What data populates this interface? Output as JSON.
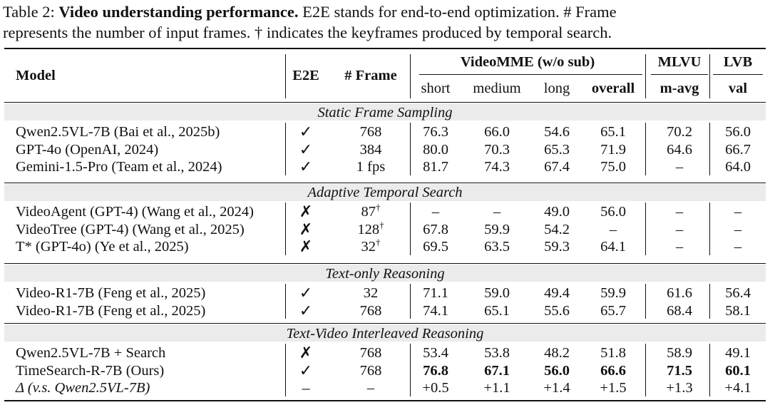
{
  "caption": {
    "prefix": "Table 2: ",
    "bold": "Video understanding performance.",
    "line1_rest": " E2E stands for end-to-end optimization. # Frame",
    "line2": "represents the number of input frames. † indicates the keyframes produced by temporal search."
  },
  "header": {
    "model": "Model",
    "e2e": "E2E",
    "frame": "# Frame",
    "videomme": "VideoMME (w/o sub)",
    "mlvu": "MLVU",
    "lvb": "LVB",
    "short": "short",
    "medium": "medium",
    "long": "long",
    "overall": "overall",
    "mavg": "m-avg",
    "val": "val"
  },
  "sections": [
    {
      "title": "Static Frame Sampling",
      "rows": [
        {
          "model": "Qwen2.5VL-7B (Bai et al., 2025b)",
          "e2e": "✓",
          "frame": "768",
          "dagger": "",
          "short": "76.3",
          "medium": "66.0",
          "long": "54.6",
          "overall": "65.1",
          "mavg": "70.2",
          "val": "56.0"
        },
        {
          "model": "GPT-4o (OpenAI, 2024)",
          "e2e": "✓",
          "frame": "384",
          "dagger": "",
          "short": "80.0",
          "medium": "70.3",
          "long": "65.3",
          "overall": "71.9",
          "mavg": "64.6",
          "val": "66.7"
        },
        {
          "model": "Gemini-1.5-Pro (Team et al., 2024)",
          "e2e": "✓",
          "frame": "1 fps",
          "dagger": "",
          "short": "81.7",
          "medium": "74.3",
          "long": "67.4",
          "overall": "75.0",
          "mavg": "–",
          "val": "64.0"
        }
      ]
    },
    {
      "title": "Adaptive Temporal Search",
      "rows": [
        {
          "model": "VideoAgent (GPT-4) (Wang et al., 2024)",
          "e2e": "✗",
          "frame": "87",
          "dagger": "†",
          "short": "–",
          "medium": "–",
          "long": "49.0",
          "overall": "56.0",
          "mavg": "–",
          "val": "–"
        },
        {
          "model": "VideoTree (GPT-4) (Wang et al., 2025)",
          "e2e": "✗",
          "frame": "128",
          "dagger": "†",
          "short": "67.8",
          "medium": "59.9",
          "long": "54.2",
          "overall": "–",
          "mavg": "–",
          "val": "–"
        },
        {
          "model": "T* (GPT-4o) (Ye et al., 2025)",
          "e2e": "✗",
          "frame": "32",
          "dagger": "†",
          "short": "69.5",
          "medium": "63.5",
          "long": "59.3",
          "overall": "64.1",
          "mavg": "–",
          "val": "–"
        }
      ]
    },
    {
      "title": "Text-only Reasoning",
      "rows": [
        {
          "model": "Video-R1-7B (Feng et al., 2025)",
          "e2e": "✓",
          "frame": "32",
          "dagger": "",
          "short": "71.1",
          "medium": "59.0",
          "long": "49.4",
          "overall": "59.9",
          "mavg": "61.6",
          "val": "56.4"
        },
        {
          "model": "Video-R1-7B (Feng et al., 2025)",
          "e2e": "✓",
          "frame": "768",
          "dagger": "",
          "short": "74.1",
          "medium": "65.1",
          "long": "55.6",
          "overall": "65.7",
          "mavg": "68.4",
          "val": "58.1"
        }
      ]
    },
    {
      "title": "Text-Video Interleaved Reasoning",
      "rows": [
        {
          "model": "Qwen2.5VL-7B + Search",
          "e2e": "✗",
          "frame": "768",
          "dagger": "",
          "short": "53.4",
          "medium": "53.8",
          "long": "48.2",
          "overall": "51.8",
          "mavg": "58.9",
          "val": "49.1"
        },
        {
          "model": "TimeSearch-R-7B (Ours)",
          "e2e": "✓",
          "frame": "768",
          "dagger": "",
          "short": "76.8",
          "medium": "67.1",
          "long": "56.0",
          "overall": "66.6",
          "mavg": "71.5",
          "val": "60.1",
          "bold": true
        },
        {
          "model": "Δ (v.s. Qwen2.5VL-7B)",
          "e2e": "–",
          "frame": "–",
          "dagger": "",
          "short": "+0.5",
          "medium": "+1.1",
          "long": "+1.4",
          "overall": "+1.5",
          "mavg": "+1.3",
          "val": "+4.1",
          "italic_model": true
        }
      ]
    }
  ]
}
